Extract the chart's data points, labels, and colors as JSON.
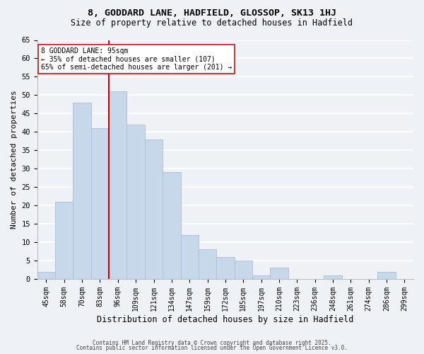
{
  "title": "8, GODDARD LANE, HADFIELD, GLOSSOP, SK13 1HJ",
  "subtitle": "Size of property relative to detached houses in Hadfield",
  "xlabel": "Distribution of detached houses by size in Hadfield",
  "ylabel": "Number of detached properties",
  "bar_color": "#c8d8eb",
  "bar_edge_color": "#a8c0d8",
  "background_color": "#eef2f7",
  "grid_color": "#ffffff",
  "categories": [
    "45sqm",
    "58sqm",
    "70sqm",
    "83sqm",
    "96sqm",
    "109sqm",
    "121sqm",
    "134sqm",
    "147sqm",
    "159sqm",
    "172sqm",
    "185sqm",
    "197sqm",
    "210sqm",
    "223sqm",
    "236sqm",
    "248sqm",
    "261sqm",
    "274sqm",
    "286sqm",
    "299sqm"
  ],
  "values": [
    2,
    21,
    48,
    41,
    51,
    42,
    38,
    29,
    12,
    8,
    6,
    5,
    1,
    3,
    0,
    0,
    1,
    0,
    0,
    2,
    0
  ],
  "vline_color": "#cc0000",
  "annotation_line0": "8 GODDARD LANE: 95sqm",
  "annotation_line1": "← 35% of detached houses are smaller (107)",
  "annotation_line2": "65% of semi-detached houses are larger (201) →",
  "ylim": [
    0,
    65
  ],
  "yticks": [
    0,
    5,
    10,
    15,
    20,
    25,
    30,
    35,
    40,
    45,
    50,
    55,
    60,
    65
  ],
  "footer1": "Contains HM Land Registry data © Crown copyright and database right 2025.",
  "footer2": "Contains public sector information licensed under the Open Government Licence v3.0."
}
